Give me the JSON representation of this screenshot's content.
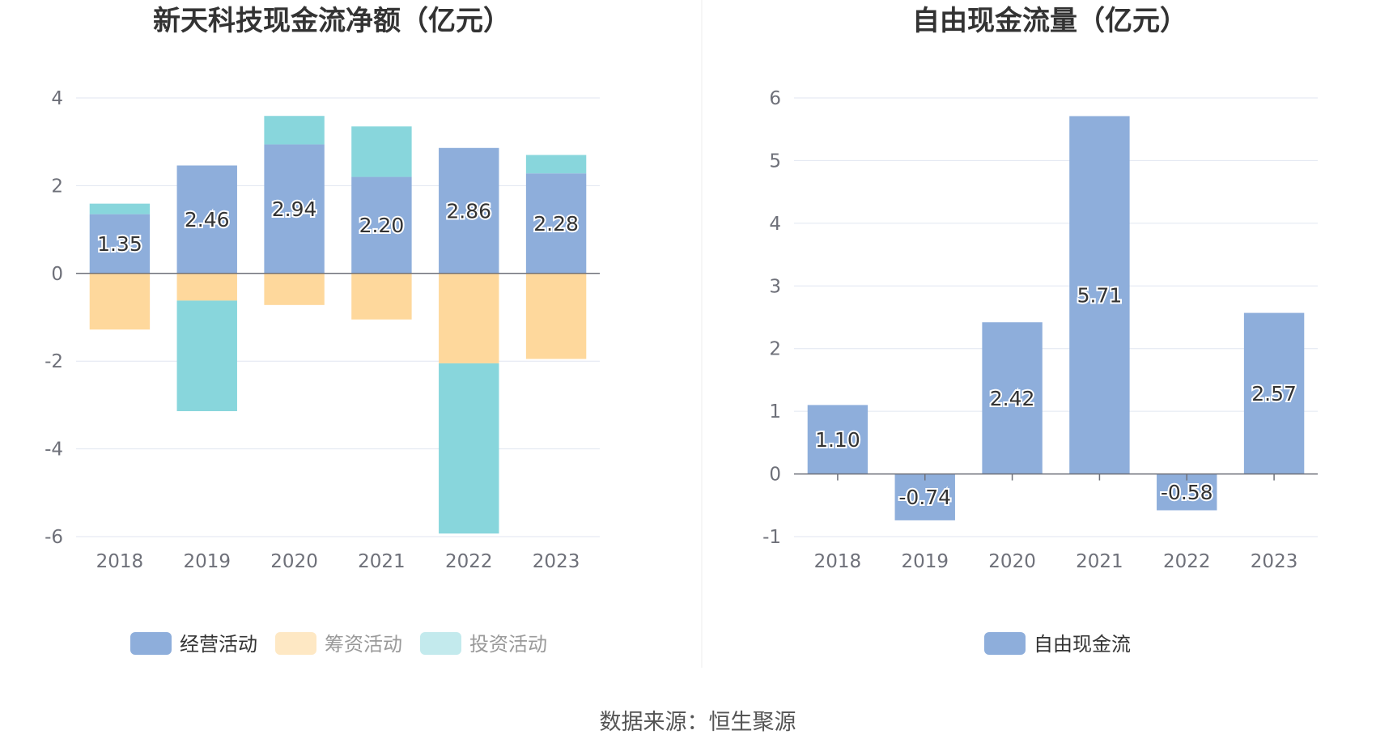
{
  "colors": {
    "operating": "#8eaedb",
    "financing": "#fed89c",
    "investing": "#88d6dc",
    "free_cash": "#8eaedb",
    "grid": "#e0e6f1",
    "axis": "#6e7079"
  },
  "source": "数据来源：恒生聚源",
  "chart_data": [
    {
      "type": "bar",
      "stacked": true,
      "title": "新天科技现金流净额（亿元）",
      "categories": [
        "2018",
        "2019",
        "2020",
        "2021",
        "2022",
        "2023"
      ],
      "ylim": [
        -6,
        4
      ],
      "yticks": [
        "4",
        "2",
        "0",
        "-2",
        "-4",
        "-6"
      ],
      "grid": true,
      "legend_position": "bottom",
      "series": [
        {
          "name": "经营活动",
          "color_key": "operating",
          "values": [
            1.35,
            2.46,
            2.94,
            2.2,
            2.86,
            2.28
          ],
          "labels": [
            "1.35",
            "2.46",
            "2.94",
            "2.20",
            "2.86",
            "2.28"
          ]
        },
        {
          "name": "筹资活动",
          "color_key": "financing",
          "values": [
            -1.28,
            -0.62,
            -0.72,
            -1.05,
            -2.05,
            -1.95
          ]
        },
        {
          "name": "投资活动",
          "color_key": "investing",
          "values": [
            0.24,
            -2.52,
            0.65,
            1.15,
            -3.88,
            0.42
          ]
        }
      ]
    },
    {
      "type": "bar",
      "title": "自由现金流量（亿元）",
      "categories": [
        "2018",
        "2019",
        "2020",
        "2021",
        "2022",
        "2023"
      ],
      "ylim": [
        -1,
        6
      ],
      "yticks": [
        "6",
        "5",
        "4",
        "3",
        "2",
        "1",
        "0",
        "-1"
      ],
      "grid": true,
      "legend_position": "bottom",
      "series": [
        {
          "name": "自由现金流",
          "color_key": "free_cash",
          "values": [
            1.1,
            -0.74,
            2.42,
            5.71,
            -0.58,
            2.57
          ],
          "labels": [
            "1.10",
            "-0.74",
            "2.42",
            "5.71",
            "-0.58",
            "2.57"
          ]
        }
      ]
    }
  ]
}
